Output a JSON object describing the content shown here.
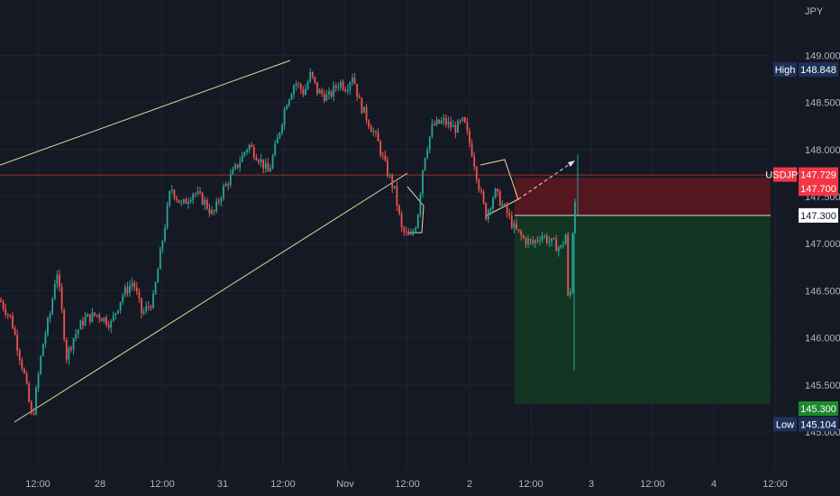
{
  "chart_data": {
    "type": "candlestick",
    "symbol": "USDJPY",
    "currency": "JPY",
    "colors": {
      "background": "#151924",
      "grid": "#1f2431",
      "text": "#b2b5be",
      "up": "#26a69a",
      "down": "#ef5350",
      "trendline": "#e8d9a0",
      "price_line": "#f44336",
      "stop_zone": "#5b1720",
      "target_zone": "#123823",
      "high_low_tag": "#1e3158",
      "target_tag": "#1b8a2a"
    },
    "y_axis": {
      "ticks": [
        "149.000",
        "148.500",
        "148.000",
        "147.500",
        "147.000",
        "146.500",
        "146.000",
        "145.500",
        "145.000"
      ],
      "min": 144.8,
      "max": 149.3
    },
    "x_axis": {
      "ticks": [
        "12:00",
        "28",
        "12:00",
        "31",
        "12:00",
        "Nov",
        "12:00",
        "2",
        "12:00",
        "3",
        "12:00",
        "4",
        "12:00"
      ]
    },
    "price_tags": {
      "high": {
        "label": "High",
        "value": "148.848"
      },
      "low": {
        "label": "Low",
        "value": "145.104"
      },
      "current": {
        "label": "USDJPY",
        "value": "147.729"
      },
      "stop": {
        "value": "147.700"
      },
      "entry": {
        "value": "147.300"
      },
      "target": {
        "value": "145.300"
      }
    },
    "position": {
      "side": "short",
      "entry": 147.3,
      "stop": 147.7,
      "target": 145.3
    },
    "price_path": [
      {
        "t": 0,
        "p": 146.4
      },
      {
        "t": 0.5,
        "p": 146.2
      },
      {
        "t": 1.1,
        "p": 145.6
      },
      {
        "t": 1.45,
        "p": 145.12
      },
      {
        "t": 1.9,
        "p": 145.9
      },
      {
        "t": 2.3,
        "p": 146.3
      },
      {
        "t": 2.55,
        "p": 146.75
      },
      {
        "t": 2.75,
        "p": 146.35
      },
      {
        "t": 3.0,
        "p": 145.8
      },
      {
        "t": 3.3,
        "p": 146.0
      },
      {
        "t": 3.8,
        "p": 146.2
      },
      {
        "t": 4.4,
        "p": 146.25
      },
      {
        "t": 5.0,
        "p": 146.15
      },
      {
        "t": 5.5,
        "p": 146.45
      },
      {
        "t": 6.0,
        "p": 146.6
      },
      {
        "t": 6.4,
        "p": 146.25
      },
      {
        "t": 6.9,
        "p": 146.4
      },
      {
        "t": 7.3,
        "p": 147.0
      },
      {
        "t": 7.7,
        "p": 147.6
      },
      {
        "t": 8.2,
        "p": 147.4
      },
      {
        "t": 8.7,
        "p": 147.55
      },
      {
        "t": 9.2,
        "p": 147.45
      },
      {
        "t": 9.6,
        "p": 147.3
      },
      {
        "t": 10.0,
        "p": 147.55
      },
      {
        "t": 10.5,
        "p": 147.75
      },
      {
        "t": 11.2,
        "p": 148.05
      },
      {
        "t": 11.7,
        "p": 147.9
      },
      {
        "t": 12.1,
        "p": 147.75
      },
      {
        "t": 12.5,
        "p": 148.1
      },
      {
        "t": 12.9,
        "p": 148.5
      },
      {
        "t": 13.3,
        "p": 148.72
      },
      {
        "t": 13.7,
        "p": 148.6
      },
      {
        "t": 14.0,
        "p": 148.8
      },
      {
        "t": 14.3,
        "p": 148.62
      },
      {
        "t": 14.8,
        "p": 148.55
      },
      {
        "t": 15.3,
        "p": 148.72
      },
      {
        "t": 15.6,
        "p": 148.66
      },
      {
        "t": 15.9,
        "p": 148.8
      },
      {
        "t": 16.2,
        "p": 148.5
      },
      {
        "t": 16.6,
        "p": 148.3
      },
      {
        "t": 17.0,
        "p": 148.1
      },
      {
        "t": 17.4,
        "p": 147.8
      },
      {
        "t": 17.8,
        "p": 147.55
      },
      {
        "t": 18.1,
        "p": 147.15
      },
      {
        "t": 18.5,
        "p": 147.05
      },
      {
        "t": 18.8,
        "p": 147.25
      },
      {
        "t": 19.1,
        "p": 147.9
      },
      {
        "t": 19.5,
        "p": 148.25
      },
      {
        "t": 20.0,
        "p": 148.3
      },
      {
        "t": 20.5,
        "p": 148.22
      },
      {
        "t": 20.9,
        "p": 148.3
      },
      {
        "t": 21.3,
        "p": 147.95
      },
      {
        "t": 21.6,
        "p": 147.6
      },
      {
        "t": 21.9,
        "p": 147.3
      },
      {
        "t": 22.3,
        "p": 147.55
      },
      {
        "t": 22.8,
        "p": 147.35
      },
      {
        "t": 23.2,
        "p": 147.15
      },
      {
        "t": 23.6,
        "p": 147.05
      },
      {
        "t": 24.0,
        "p": 147.0
      },
      {
        "t": 24.4,
        "p": 147.1
      },
      {
        "t": 24.9,
        "p": 147.0
      },
      {
        "t": 25.3,
        "p": 146.95
      },
      {
        "t": 25.5,
        "p": 147.1
      },
      {
        "t": 25.65,
        "p": 146.1
      },
      {
        "t": 25.8,
        "p": 147.1
      },
      {
        "t": 26.0,
        "p": 147.729
      }
    ]
  }
}
